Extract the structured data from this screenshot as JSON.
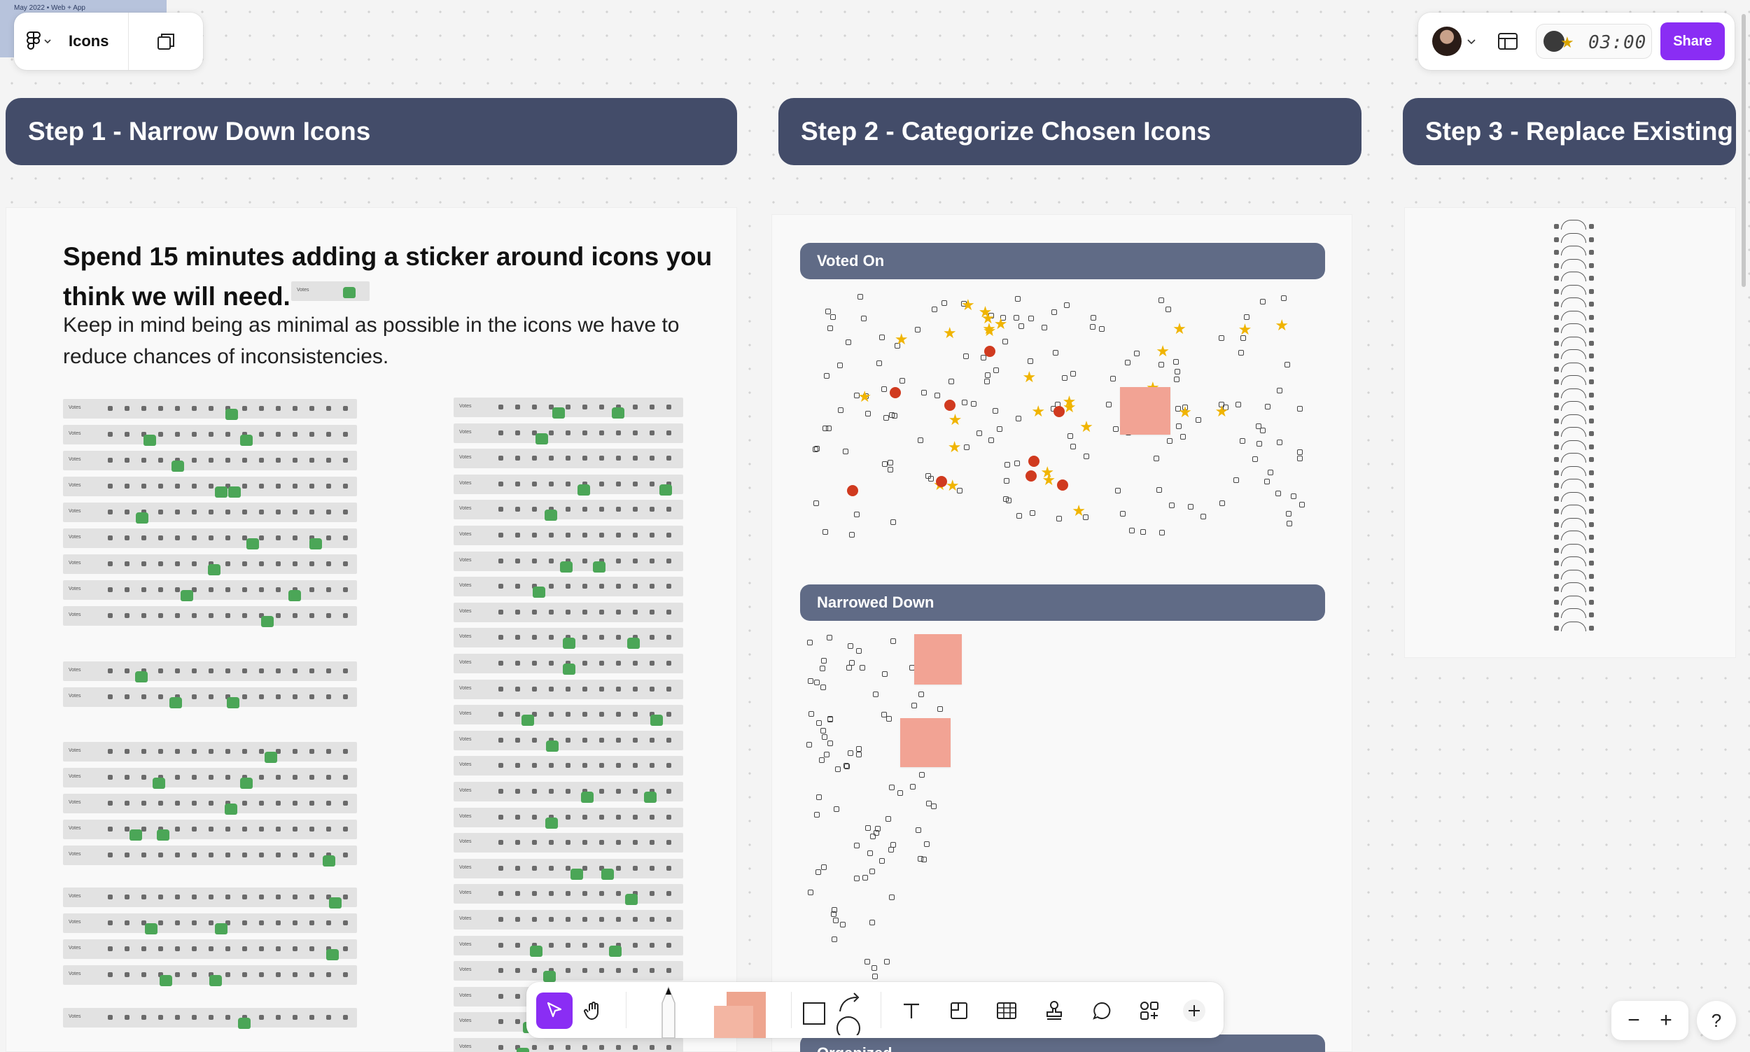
{
  "thumbnail": {
    "caption": "May 2022 • Web + App"
  },
  "file": {
    "name": "Icons"
  },
  "header": {
    "timer": "03:00",
    "share_label": "Share"
  },
  "steps": [
    {
      "title": "Step 1 - Narrow Down Icons"
    },
    {
      "title": "Step 2 - Categorize Chosen Icons"
    },
    {
      "title": "Step 3 - Replace Existing"
    }
  ],
  "step1": {
    "lead": "Spend 15 minutes adding a sticker around icons you think we will need.",
    "body": "Keep in mind being as minimal as possible in the icons we have to reduce chances of inconsistencies.",
    "row_label": "Votes"
  },
  "step2": {
    "categories": [
      {
        "label": "Voted On"
      },
      {
        "label": "Narrowed Down"
      },
      {
        "label": "Organized"
      }
    ]
  },
  "tools": {
    "move": "move-tool",
    "hand": "hand-tool",
    "text_glyph": "T",
    "add_glyph": "+"
  },
  "zoom": {
    "out": "−",
    "in": "+"
  },
  "help": "?",
  "icons": {
    "figma": "figma-logo-icon",
    "pages": "pages-icon",
    "layout": "layout-icon",
    "cursor": "cursor-icon",
    "hand": "hand-icon",
    "pen": "pen-icon",
    "sticky": "sticky-note-icon",
    "shape": "shape-icon",
    "connector": "connector-icon",
    "text": "text-icon",
    "section": "section-icon",
    "table": "table-icon",
    "stamp": "stamp-icon",
    "comment": "comment-icon",
    "widgets": "widgets-icon",
    "add": "add-icon"
  },
  "colors": {
    "accent": "#8a2df4",
    "step_header": "#434c69",
    "category_bar": "#606b86",
    "sticky": "#f2a394",
    "thumb": "#4ba657",
    "star": "#f0b400"
  }
}
